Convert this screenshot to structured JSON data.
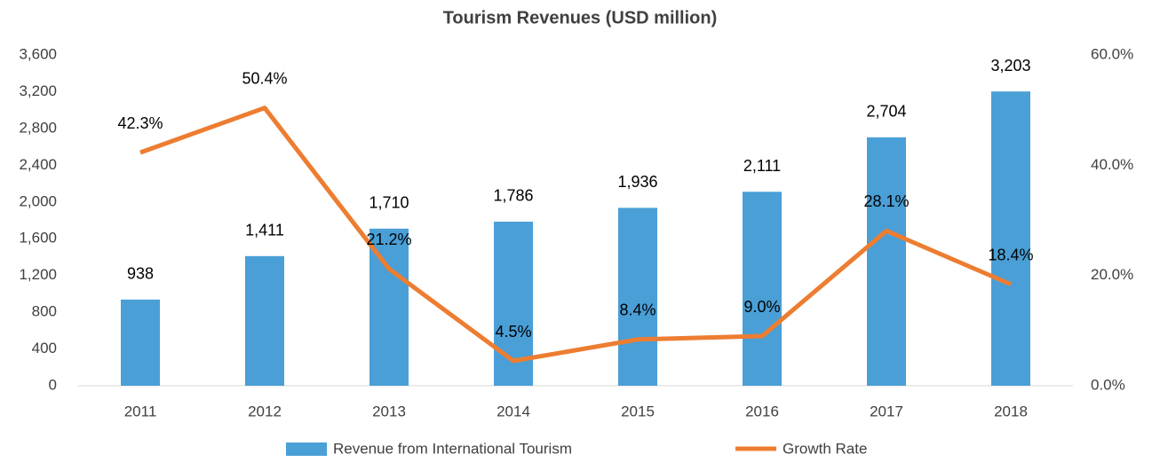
{
  "chart_data": {
    "type": "combo",
    "title": "Tourism Revenues (USD million)",
    "categories": [
      "2011",
      "2012",
      "2013",
      "2014",
      "2015",
      "2016",
      "2017",
      "2018"
    ],
    "series": [
      {
        "name": "Revenue from International Tourism",
        "type": "bar",
        "color": "#4a9fd6",
        "values": [
          938,
          1411,
          1710,
          1786,
          1936,
          2111,
          2704,
          3203
        ],
        "value_labels": [
          "938",
          "1,411",
          "1,710",
          "1,786",
          "1,936",
          "2,111",
          "2,704",
          "3,203"
        ]
      },
      {
        "name": "Growth Rate",
        "type": "line",
        "color": "#ed7d31",
        "axis": "y2",
        "values": [
          42.3,
          50.4,
          21.2,
          4.5,
          8.4,
          9.0,
          28.1,
          18.4
        ],
        "value_labels": [
          "42.3%",
          "50.4%",
          "21.2%",
          "4.5%",
          "8.4%",
          "9.0%",
          "28.1%",
          "18.4%"
        ]
      }
    ],
    "ylim": [
      0,
      3600
    ],
    "yticks": [
      0,
      400,
      800,
      {
        "value": 1200,
        "label": "1,200"
      },
      {
        "value": 1600,
        "label": "1,600"
      },
      {
        "value": 2000,
        "label": "2,000"
      },
      {
        "value": 2400,
        "label": "2,400"
      },
      {
        "value": 2800,
        "label": "2,800"
      },
      {
        "value": 3200,
        "label": "3,200"
      },
      {
        "value": 3600,
        "label": "3,600"
      }
    ],
    "y2lim": [
      0,
      60
    ],
    "y2ticks": [
      {
        "value": 0,
        "label": "0.0%"
      },
      {
        "value": 20,
        "label": "20.0%"
      },
      {
        "value": 40,
        "label": "40.0%"
      },
      {
        "value": 60,
        "label": "60.0%"
      }
    ],
    "grid": false,
    "legend": "bottom"
  }
}
